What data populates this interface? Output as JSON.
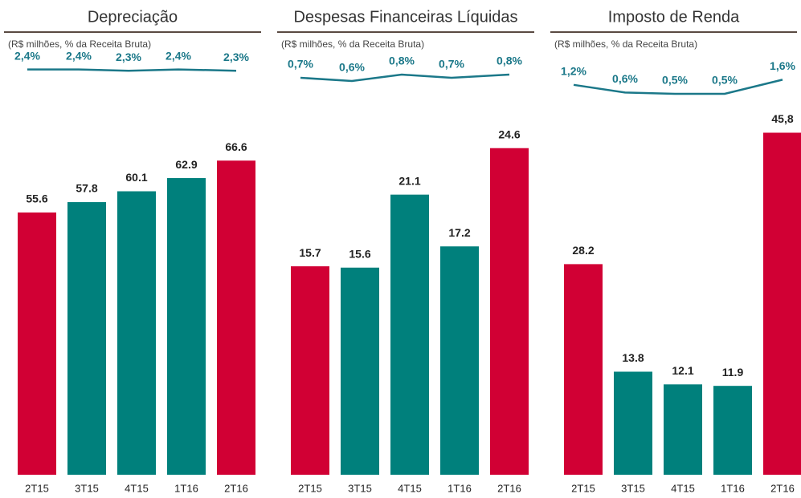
{
  "chart_data": [
    {
      "type": "bar",
      "title": "Depreciação",
      "subtitle": "(R$ milhões, % da Receita Bruta)",
      "categories": [
        "2T15",
        "3T15",
        "4T15",
        "1T16",
        "2T16"
      ],
      "values": [
        55.6,
        57.8,
        60.1,
        62.9,
        66.6
      ],
      "colors": [
        "#d10034",
        "#00807c",
        "#00807c",
        "#00807c",
        "#d10034"
      ],
      "ylim": [
        0,
        76
      ],
      "series": [
        {
          "name": "% da Receita Bruta",
          "color": "#1b7889",
          "axis": "y2",
          "values": [
            2.4,
            2.4,
            2.3,
            2.4,
            2.3
          ],
          "value_labels": [
            "2,4%",
            "2,4%",
            "2,3%",
            "2,4%",
            "2,3%"
          ]
        }
      ],
      "y2lim": [
        0,
        2.5
      ]
    },
    {
      "type": "bar",
      "title": "Despesas Financeiras Líquidas",
      "subtitle": "(R$ milhões, % da Receita Bruta)",
      "categories": [
        "2T15",
        "3T15",
        "4T15",
        "1T16",
        "2T16"
      ],
      "values": [
        15.7,
        15.6,
        21.1,
        17.2,
        24.6
      ],
      "colors": [
        "#d10034",
        "#00807c",
        "#00807c",
        "#00807c",
        "#d10034"
      ],
      "ylim": [
        0,
        27
      ],
      "series": [
        {
          "name": "% da Receita Bruta",
          "color": "#1b7889",
          "axis": "y2",
          "values": [
            0.7,
            0.6,
            0.8,
            0.7,
            0.8
          ],
          "value_labels": [
            "0,7%",
            "0,6%",
            "0,8%",
            "0,7%",
            "0,8%"
          ]
        }
      ],
      "y2lim": [
        0,
        1
      ]
    },
    {
      "type": "bar",
      "title": "Imposto de Renda",
      "subtitle": "(R$ milhões, % da Receita Bruta)",
      "categories": [
        "2T15",
        "3T15",
        "4T15",
        "1T16",
        "2T16"
      ],
      "values": [
        28.2,
        13.8,
        12.1,
        11.9,
        45.8
      ],
      "value_labels": [
        "28.2",
        "13.8",
        "12.1",
        "11.9",
        "45,8"
      ],
      "colors": [
        "#d10034",
        "#00807c",
        "#00807c",
        "#00807c",
        "#d10034"
      ],
      "ylim": [
        0,
        48
      ],
      "series": [
        {
          "name": "% da Receita Bruta",
          "color": "#1b7889",
          "axis": "y2",
          "values": [
            1.2,
            0.6,
            0.5,
            0.5,
            1.6
          ],
          "value_labels": [
            "1,2%",
            "0,6%",
            "0,5%",
            "0,5%",
            "1,6%"
          ]
        }
      ],
      "y2lim": [
        0,
        2.5
      ]
    }
  ]
}
